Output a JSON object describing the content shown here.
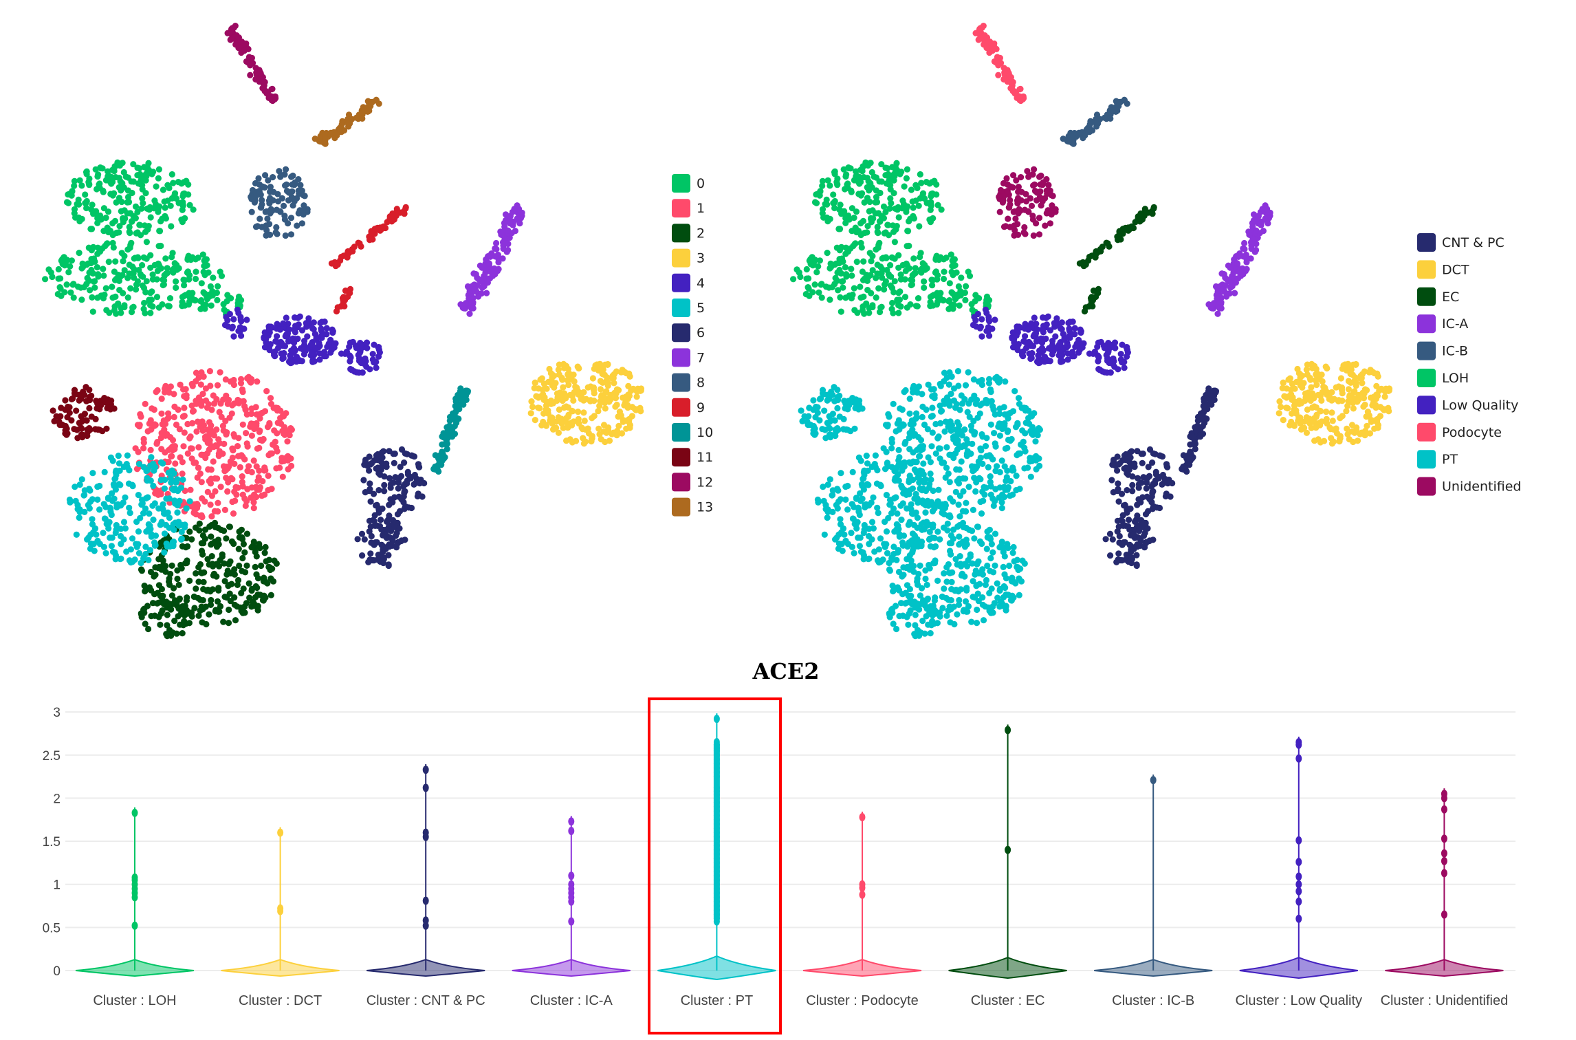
{
  "chart_data": [
    {
      "type": "scatter",
      "legend_title": "",
      "legend_placement": "right",
      "legend": [
        {
          "label": "0",
          "color": "#00c565"
        },
        {
          "label": "1",
          "color": "#ff4a6b"
        },
        {
          "label": "2",
          "color": "#004d0f"
        },
        {
          "label": "3",
          "color": "#fcd03c"
        },
        {
          "label": "4",
          "color": "#4321c0"
        },
        {
          "label": "5",
          "color": "#00c2c7"
        },
        {
          "label": "6",
          "color": "#262a6e"
        },
        {
          "label": "7",
          "color": "#8c33db"
        },
        {
          "label": "8",
          "color": "#365a80"
        },
        {
          "label": "9",
          "color": "#d81e2a"
        },
        {
          "label": "10",
          "color": "#009496"
        },
        {
          "label": "11",
          "color": "#7a0414"
        },
        {
          "label": "12",
          "color": "#9c0a61"
        },
        {
          "label": "13",
          "color": "#ad6a1f"
        }
      ],
      "axes_visible": false
    },
    {
      "type": "scatter",
      "legend_placement": "right",
      "legend": [
        {
          "label": "CNT & PC",
          "color": "#262a6e"
        },
        {
          "label": "DCT",
          "color": "#fcd03c"
        },
        {
          "label": "EC",
          "color": "#004d0f"
        },
        {
          "label": "IC-A",
          "color": "#8c33db"
        },
        {
          "label": "IC-B",
          "color": "#365a80"
        },
        {
          "label": "LOH",
          "color": "#00c565"
        },
        {
          "label": "Low Quality",
          "color": "#4321c0"
        },
        {
          "label": "Podocyte",
          "color": "#ff4a6b"
        },
        {
          "label": "PT",
          "color": "#00c2c7"
        },
        {
          "label": "Unidentified",
          "color": "#9c0a61"
        }
      ],
      "cluster_to_celltype": {
        "0": "LOH",
        "1": "PT",
        "2": "PT",
        "3": "DCT",
        "4": "Low Quality",
        "5": "PT",
        "6": "CNT & PC",
        "7": "IC-A",
        "8": "Unidentified",
        "9": "EC",
        "10": "CNT & PC",
        "11": "PT",
        "12": "Podocyte",
        "13": "IC-B"
      },
      "axes_visible": false
    },
    {
      "type": "violin",
      "title": "ACE2",
      "xlabel": "",
      "ylabel": "",
      "ylim": [
        0,
        3
      ],
      "yticks": [
        "0",
        "0.5",
        "1",
        "1.5",
        "2",
        "2.5",
        "3"
      ],
      "grid": true,
      "highlighted_category": "Cluster : PT",
      "highlight_color": "#ff0000",
      "series": [
        {
          "label": "Cluster : LOH",
          "color": "#00c565",
          "points": [
            1.83,
            1.08,
            1.05,
            1.0,
            0.95,
            0.9,
            0.85,
            0.52
          ]
        },
        {
          "label": "Cluster : DCT",
          "color": "#fcd03c",
          "points": [
            1.6,
            0.72,
            0.69
          ]
        },
        {
          "label": "Cluster : CNT & PC",
          "color": "#262a6e",
          "points": [
            2.33,
            2.12,
            1.6,
            1.55,
            0.81,
            0.58,
            0.52
          ]
        },
        {
          "label": "Cluster : IC-A",
          "color": "#8c33db",
          "points": [
            1.73,
            1.62,
            1.1,
            1.0,
            0.95,
            0.9,
            0.85,
            0.8,
            0.57
          ]
        },
        {
          "label": "Cluster : PT",
          "color": "#00c2c7",
          "points": [
            2.92,
            2.65,
            2.62,
            2.58,
            2.55,
            2.5,
            2.45,
            2.4,
            2.35,
            2.3,
            2.25,
            2.12,
            2.08,
            2.04,
            2.0,
            1.95,
            1.9,
            1.85,
            1.8,
            1.75,
            1.7,
            1.65,
            1.6,
            1.55,
            1.5,
            1.45,
            1.4,
            1.35,
            1.3,
            1.25,
            1.2,
            1.15,
            1.1,
            1.05,
            1.0,
            0.95,
            0.9,
            0.85,
            0.8,
            0.75,
            0.7,
            0.65,
            0.6,
            0.57
          ]
        },
        {
          "label": "Cluster : Podocyte",
          "color": "#ff4a6b",
          "points": [
            1.78,
            1.0,
            0.96,
            0.88
          ]
        },
        {
          "label": "Cluster : EC",
          "color": "#004d0f",
          "points": [
            2.79,
            1.4
          ]
        },
        {
          "label": "Cluster : IC-B",
          "color": "#365a80",
          "points": [
            2.21
          ]
        },
        {
          "label": "Cluster : Low Quality",
          "color": "#4321c0",
          "points": [
            2.65,
            2.62,
            2.46,
            1.51,
            1.26,
            1.09,
            1.0,
            0.92,
            0.8,
            0.6
          ]
        },
        {
          "label": "Cluster : Unidentified",
          "color": "#9c0a61",
          "points": [
            2.05,
            2.0,
            1.87,
            1.53,
            1.36,
            1.27,
            1.13,
            0.65
          ]
        }
      ]
    }
  ]
}
